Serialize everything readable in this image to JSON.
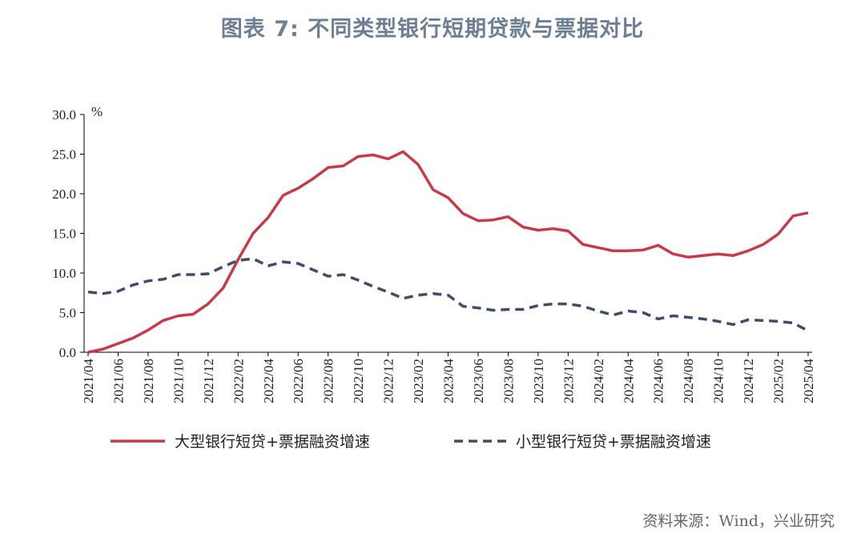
{
  "header": {
    "title": "图表 7: 不同类型银行短期贷款与票据对比"
  },
  "footer": {
    "source": "资料来源：Wind，兴业研究"
  },
  "chart_data": {
    "type": "line",
    "title": "图表 7: 不同类型银行短期贷款与票据对比",
    "ylabel": "%",
    "ylim": [
      0,
      30
    ],
    "yticks": [
      "0.0",
      "5.0",
      "10.0",
      "15.0",
      "20.0",
      "25.0",
      "30.0"
    ],
    "x": [
      "2021/04",
      "2021/05",
      "2021/06",
      "2021/07",
      "2021/08",
      "2021/09",
      "2021/10",
      "2021/11",
      "2021/12",
      "2022/01",
      "2022/02",
      "2022/03",
      "2022/04",
      "2022/05",
      "2022/06",
      "2022/07",
      "2022/08",
      "2022/09",
      "2022/10",
      "2022/11",
      "2022/12",
      "2023/01",
      "2023/02",
      "2023/03",
      "2023/04",
      "2023/05",
      "2023/06",
      "2023/07",
      "2023/08",
      "2023/09",
      "2023/10",
      "2023/11",
      "2023/12",
      "2024/01",
      "2024/02",
      "2024/03",
      "2024/04",
      "2024/05",
      "2024/06",
      "2024/07",
      "2024/08",
      "2024/09",
      "2024/10",
      "2024/11",
      "2024/12",
      "2025/01",
      "2025/02",
      "2025/03",
      "2025/04"
    ],
    "xticks": [
      "2021/04",
      "2021/06",
      "2021/08",
      "2021/10",
      "2021/12",
      "2022/02",
      "2022/04",
      "2022/06",
      "2022/08",
      "2022/10",
      "2022/12",
      "2023/02",
      "2023/04",
      "2023/06",
      "2023/08",
      "2023/10",
      "2023/12",
      "2024/02",
      "2024/04",
      "2024/06",
      "2024/08",
      "2024/10",
      "2024/12",
      "2025/02",
      "2025/04"
    ],
    "legend_position": "bottom",
    "grid": false,
    "series": [
      {
        "name": "大型银行短贷+票据融资增速",
        "color": "#c8394a",
        "style": "solid",
        "values": [
          0.0,
          0.4,
          1.1,
          1.8,
          2.8,
          4.0,
          4.6,
          4.8,
          6.1,
          8.1,
          11.7,
          15.0,
          17.0,
          19.8,
          20.7,
          21.9,
          23.3,
          23.5,
          24.7,
          24.9,
          24.4,
          25.3,
          23.7,
          20.5,
          19.5,
          17.5,
          16.6,
          16.7,
          17.1,
          15.8,
          15.4,
          15.6,
          15.3,
          13.6,
          13.2,
          12.8,
          12.8,
          12.9,
          13.5,
          12.4,
          12.0,
          12.2,
          12.4,
          12.2,
          12.8,
          13.6,
          14.9,
          17.2,
          17.6
        ]
      },
      {
        "name": "小型银行短贷+票据融资增速",
        "color": "#3f4e68",
        "style": "dashed",
        "values": [
          7.6,
          7.4,
          7.7,
          8.5,
          9.0,
          9.2,
          9.8,
          9.8,
          9.9,
          10.8,
          11.6,
          11.8,
          10.9,
          11.4,
          11.2,
          10.4,
          9.6,
          9.8,
          9.1,
          8.3,
          7.6,
          6.8,
          7.2,
          7.4,
          7.2,
          5.8,
          5.6,
          5.3,
          5.4,
          5.4,
          5.9,
          6.1,
          6.1,
          5.8,
          5.2,
          4.7,
          5.2,
          5.0,
          4.2,
          4.6,
          4.4,
          4.2,
          3.9,
          3.5,
          4.1,
          4.0,
          3.9,
          3.7,
          2.7
        ]
      }
    ]
  }
}
